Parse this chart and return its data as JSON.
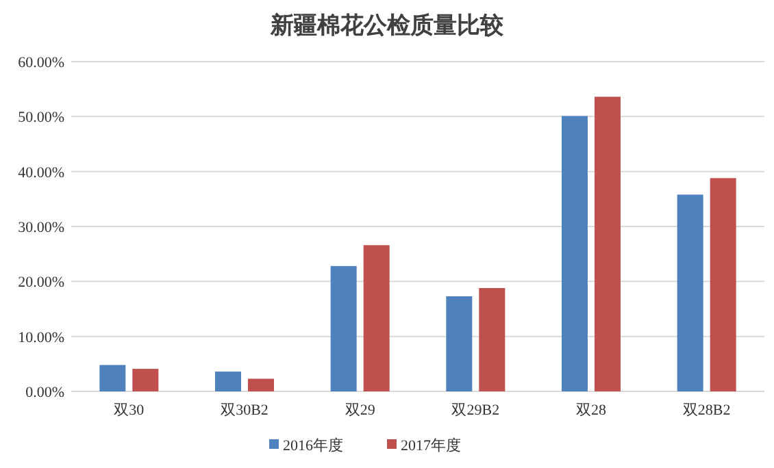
{
  "chart_data": {
    "type": "bar",
    "title": "新疆棉花公检质量比较",
    "categories": [
      "双30",
      "双30B2",
      "双29",
      "双29B2",
      "双28",
      "双28B2"
    ],
    "series": [
      {
        "name": "2016年度",
        "color": "#4f81bd",
        "values": [
          4.8,
          3.6,
          22.8,
          17.3,
          50.1,
          35.8
        ]
      },
      {
        "name": "2017年度",
        "color": "#c0504d",
        "values": [
          4.1,
          2.3,
          26.6,
          18.8,
          53.6,
          38.8
        ]
      }
    ],
    "ylim": [
      0,
      60
    ],
    "yticks": [
      {
        "value": 0,
        "label": "0.00%"
      },
      {
        "value": 10,
        "label": "10.00%"
      },
      {
        "value": 20,
        "label": "20.00%"
      },
      {
        "value": 30,
        "label": "30.00%"
      },
      {
        "value": 40,
        "label": "40.00%"
      },
      {
        "value": 50,
        "label": "50.00%"
      },
      {
        "value": 60,
        "label": "60.00%"
      }
    ],
    "grid": "y",
    "legend": "bottom"
  }
}
